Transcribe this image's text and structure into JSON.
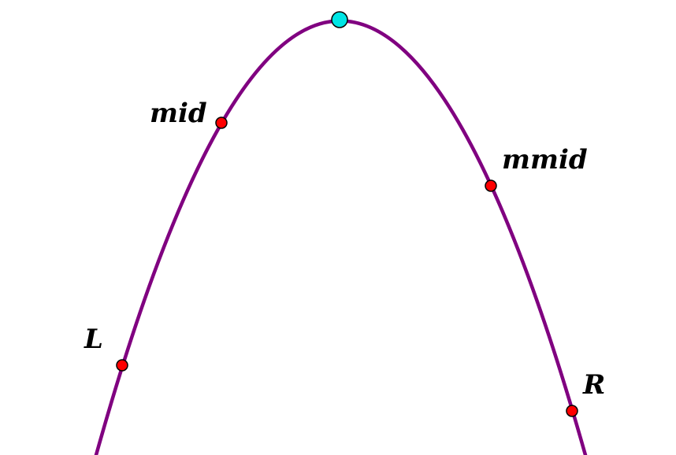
{
  "colors": {
    "curve": "#800080",
    "vertex_fill": "#00e5e5",
    "point_fill": "#ff0000",
    "point_stroke": "#000000",
    "label": "#000000",
    "background": "#ffffff"
  },
  "labels": {
    "mid": "mid",
    "mmid": "mmid",
    "L": "L",
    "R": "R"
  }
}
